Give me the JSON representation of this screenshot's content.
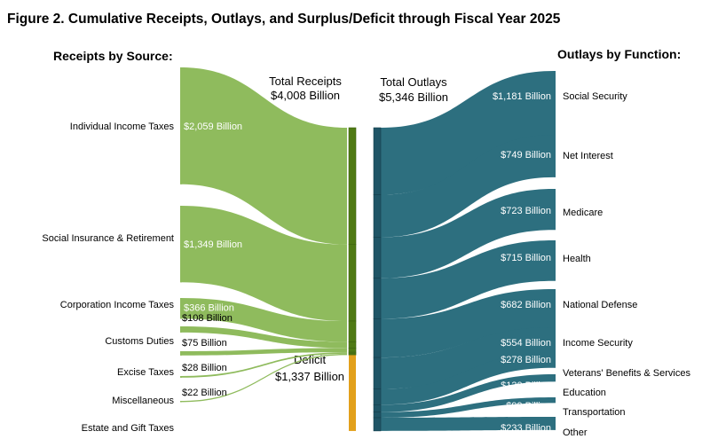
{
  "title": "Figure 2. Cumulative Receipts, Outlays, and Surplus/Deficit through Fiscal Year 2025",
  "headers": {
    "receipts": "Receipts by Source:",
    "outlays": "Outlays by Function:"
  },
  "totals": {
    "receipts_label": "Total Receipts",
    "receipts_value": "$4,008 Billion",
    "outlays_label": "Total Outlays",
    "outlays_value": "$5,346 Billion",
    "deficit_label": "Deficit",
    "deficit_value": "$1,337 Billion"
  },
  "colors": {
    "receipts_flow": "#8fbb5d",
    "receipts_bar": "#4f7a14",
    "deficit": "#e2a01b",
    "outlays_flow": "#2d6f7f",
    "outlays_bar": "#1f5566"
  },
  "chart_data": {
    "type": "sankey",
    "title": "Figure 2. Cumulative Receipts, Outlays, and Surplus/Deficit through Fiscal Year 2025",
    "units": "Billion",
    "receipts": [
      {
        "name": "Individual Income Taxes",
        "value": 2059,
        "label": "$2,059 Billion"
      },
      {
        "name": "Social Insurance & Retirement",
        "value": 1349,
        "label": "$1,349 Billion"
      },
      {
        "name": "Corporation Income Taxes",
        "value": 366,
        "label": "$366 Billion"
      },
      {
        "name": "Customs Duties",
        "value": 108,
        "label": "$108 Billion"
      },
      {
        "name": "Excise Taxes",
        "value": 75,
        "label": "$75 Billion"
      },
      {
        "name": "Miscellaneous",
        "value": 28,
        "label": "$28 Billion"
      },
      {
        "name": "Estate and Gift Taxes",
        "value": 22,
        "label": "$22 Billion"
      }
    ],
    "outlays": [
      {
        "name": "Social Security",
        "value": 1181,
        "label": "$1,181 Billion"
      },
      {
        "name": "Net Interest",
        "value": 749,
        "label": "$749 Billion"
      },
      {
        "name": "Medicare",
        "value": 723,
        "label": "$723 Billion"
      },
      {
        "name": "Health",
        "value": 715,
        "label": "$715 Billion"
      },
      {
        "name": "National Defense",
        "value": 682,
        "label": "$682 Billion"
      },
      {
        "name": "Income Security",
        "value": 554,
        "label": "$554 Billion"
      },
      {
        "name": "Veterans' Benefits & Services",
        "value": 278,
        "label": "$278 Billion"
      },
      {
        "name": "Education",
        "value": 130,
        "label": "$130 Billion"
      },
      {
        "name": "Transportation",
        "value": 99,
        "label": "$99 Billion"
      },
      {
        "name": "Other",
        "value": 233,
        "label": "$233 Billion"
      }
    ],
    "total_receipts": 4008,
    "total_outlays": 5346,
    "deficit": 1337
  }
}
